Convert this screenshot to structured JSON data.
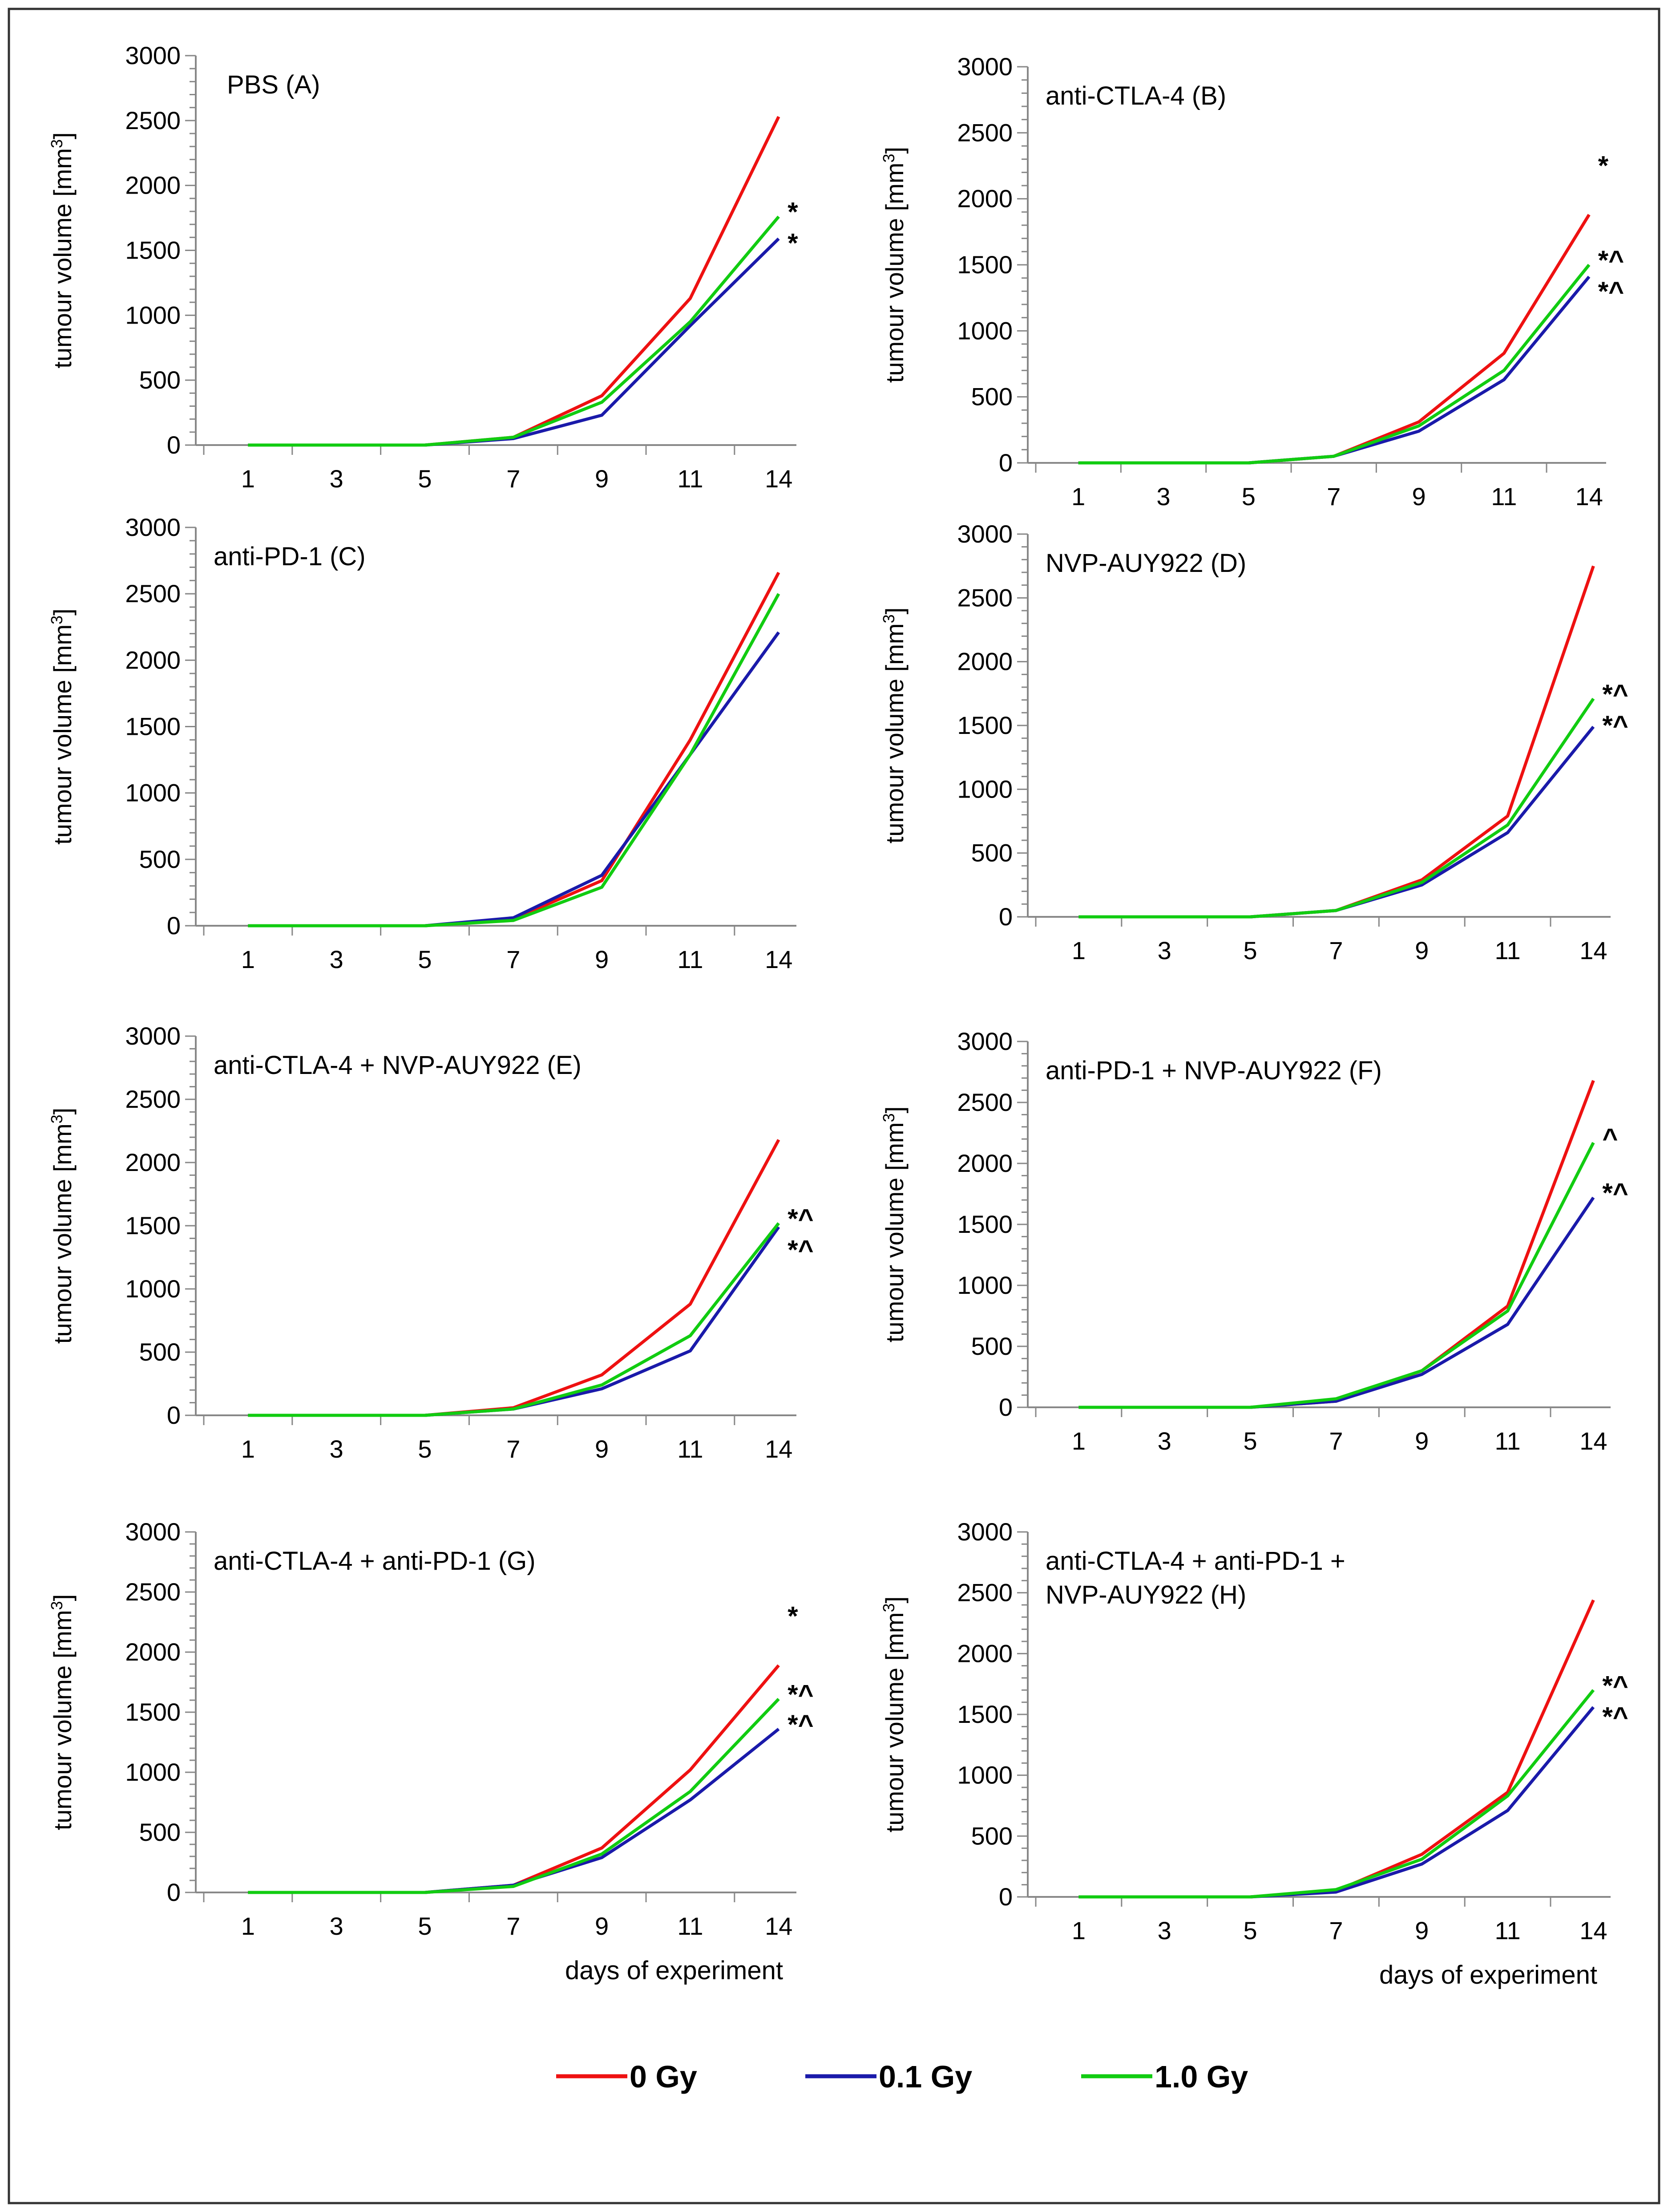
{
  "chart_data": [
    {
      "type": "line",
      "panel": "A",
      "title": "PBS (A)",
      "categories": [
        "1",
        "3",
        "5",
        "7",
        "9",
        "11",
        "14"
      ],
      "xlabel": "",
      "ylabel": "tumour volume [mm3]",
      "ylim": [
        0,
        3000
      ],
      "yticks": [
        "0",
        "500",
        "1000",
        "1500",
        "2000",
        "2500",
        "3000"
      ],
      "series": [
        {
          "name": "0 Gy",
          "values": [
            0,
            0,
            0,
            60,
            380,
            1130,
            2530
          ]
        },
        {
          "name": "0.1 Gy",
          "values": [
            0,
            0,
            0,
            50,
            230,
            920,
            1590
          ]
        },
        {
          "name": "1.0 Gy",
          "values": [
            0,
            0,
            0,
            60,
            330,
            950,
            1760
          ]
        }
      ],
      "annotations": [
        {
          "text": "*",
          "series": "1.0 Gy"
        },
        {
          "text": "*",
          "series": "0.1 Gy"
        }
      ]
    },
    {
      "type": "line",
      "panel": "B",
      "title": "anti-CTLA-4  (B)",
      "categories": [
        "1",
        "3",
        "5",
        "7",
        "9",
        "11",
        "14"
      ],
      "xlabel": "",
      "ylabel": "tumour volume [mm3]",
      "ylim": [
        0,
        3000
      ],
      "yticks": [
        "0",
        "500",
        "1000",
        "1500",
        "2000",
        "2500",
        "3000"
      ],
      "series": [
        {
          "name": "0 Gy",
          "values": [
            0,
            0,
            0,
            50,
            310,
            830,
            1880
          ]
        },
        {
          "name": "0.1 Gy",
          "values": [
            0,
            0,
            0,
            50,
            240,
            630,
            1410
          ]
        },
        {
          "name": "1.0 Gy",
          "values": [
            0,
            0,
            0,
            50,
            280,
            700,
            1500
          ]
        }
      ],
      "annotations": [
        {
          "text": "*",
          "series": "0 Gy"
        },
        {
          "text": "*^",
          "series": "1.0 Gy"
        },
        {
          "text": "*^",
          "series": "0.1 Gy"
        }
      ]
    },
    {
      "type": "line",
      "panel": "C",
      "title": "anti-PD-1  (C)",
      "categories": [
        "1",
        "3",
        "5",
        "7",
        "9",
        "11",
        "14"
      ],
      "xlabel": "",
      "ylabel": "tumour volume [mm3]",
      "ylim": [
        0,
        3000
      ],
      "yticks": [
        "0",
        "500",
        "1000",
        "1500",
        "2000",
        "2500",
        "3000"
      ],
      "series": [
        {
          "name": "0 Gy",
          "values": [
            0,
            0,
            0,
            50,
            340,
            1400,
            2660
          ]
        },
        {
          "name": "0.1 Gy",
          "values": [
            0,
            0,
            0,
            60,
            380,
            1290,
            2210
          ]
        },
        {
          "name": "1.0 Gy",
          "values": [
            0,
            0,
            0,
            40,
            290,
            1290,
            2500
          ]
        }
      ],
      "annotations": []
    },
    {
      "type": "line",
      "panel": "D",
      "title": "NVP-AUY922  (D)",
      "categories": [
        "1",
        "3",
        "5",
        "7",
        "9",
        "11",
        "14"
      ],
      "xlabel": "",
      "ylabel": "tumour volume [mm3]",
      "ylim": [
        0,
        3000
      ],
      "yticks": [
        "0",
        "500",
        "1000",
        "1500",
        "2000",
        "2500",
        "3000"
      ],
      "series": [
        {
          "name": "0 Gy",
          "values": [
            0,
            0,
            0,
            50,
            290,
            790,
            2750
          ]
        },
        {
          "name": "0.1 Gy",
          "values": [
            0,
            0,
            0,
            50,
            250,
            660,
            1490
          ]
        },
        {
          "name": "1.0 Gy",
          "values": [
            0,
            0,
            0,
            50,
            270,
            720,
            1710
          ]
        }
      ],
      "annotations": [
        {
          "text": "*^",
          "series": "1.0 Gy"
        },
        {
          "text": "*^",
          "series": "0.1 Gy"
        }
      ]
    },
    {
      "type": "line",
      "panel": "E",
      "title": "anti-CTLA-4  + NVP-AUY922  (E)",
      "categories": [
        "1",
        "3",
        "5",
        "7",
        "9",
        "11",
        "14"
      ],
      "xlabel": "",
      "ylabel": "tumour volume [mm3]",
      "ylim": [
        0,
        3000
      ],
      "yticks": [
        "0",
        "500",
        "1000",
        "1500",
        "2000",
        "2500",
        "3000"
      ],
      "series": [
        {
          "name": "0 Gy",
          "values": [
            0,
            0,
            0,
            60,
            320,
            880,
            2180
          ]
        },
        {
          "name": "0.1 Gy",
          "values": [
            0,
            0,
            0,
            50,
            210,
            510,
            1490
          ]
        },
        {
          "name": "1.0 Gy",
          "values": [
            0,
            0,
            0,
            50,
            240,
            630,
            1520
          ]
        }
      ],
      "annotations": [
        {
          "text": "*^",
          "series": "1.0 Gy"
        },
        {
          "text": "*^",
          "series": "0.1 Gy"
        }
      ]
    },
    {
      "type": "line",
      "panel": "F",
      "title": "anti-PD-1  + NVP-AUY922  (F)",
      "categories": [
        "1",
        "3",
        "5",
        "7",
        "9",
        "11",
        "14"
      ],
      "xlabel": "",
      "ylabel": "tumour volume [mm3]",
      "ylim": [
        0,
        3000
      ],
      "yticks": [
        "0",
        "500",
        "1000",
        "1500",
        "2000",
        "2500",
        "3000"
      ],
      "series": [
        {
          "name": "0 Gy",
          "values": [
            0,
            0,
            0,
            50,
            300,
            830,
            2680
          ]
        },
        {
          "name": "0.1 Gy",
          "values": [
            0,
            0,
            0,
            50,
            270,
            680,
            1720
          ]
        },
        {
          "name": "1.0 Gy",
          "values": [
            0,
            0,
            0,
            70,
            300,
            790,
            2170
          ]
        }
      ],
      "annotations": [
        {
          "text": "^",
          "series": "1.0 Gy"
        },
        {
          "text": "*^",
          "series": "0.1 Gy"
        }
      ]
    },
    {
      "type": "line",
      "panel": "G",
      "title": "anti-CTLA-4  + anti-PD-1 (G)",
      "categories": [
        "1",
        "3",
        "5",
        "7",
        "9",
        "11",
        "14"
      ],
      "xlabel": "days of experiment",
      "ylabel": "tumour volume [mm3]",
      "ylim": [
        0,
        3000
      ],
      "yticks": [
        "0",
        "500",
        "1000",
        "1500",
        "2000",
        "2500",
        "3000"
      ],
      "series": [
        {
          "name": "0 Gy",
          "values": [
            0,
            0,
            0,
            60,
            370,
            1020,
            1890
          ]
        },
        {
          "name": "0.1 Gy",
          "values": [
            0,
            0,
            0,
            60,
            290,
            770,
            1360
          ]
        },
        {
          "name": "1.0 Gy",
          "values": [
            0,
            0,
            0,
            50,
            320,
            840,
            1610
          ]
        }
      ],
      "annotations": [
        {
          "text": "*",
          "series": "0 Gy"
        },
        {
          "text": "*^",
          "series": "1.0 Gy"
        },
        {
          "text": "*^",
          "series": "0.1 Gy"
        }
      ]
    },
    {
      "type": "line",
      "panel": "H",
      "title": "anti-CTLA-4  + anti-PD-1 + NVP-AUY922  (H)",
      "title_lines": [
        "anti-CTLA-4  + anti-PD-1 +",
        "NVP-AUY922  (H)"
      ],
      "categories": [
        "1",
        "3",
        "5",
        "7",
        "9",
        "11",
        "14"
      ],
      "xlabel": "days of experiment",
      "ylabel": "tumour volume [mm3]",
      "ylim": [
        0,
        3000
      ],
      "yticks": [
        "0",
        "500",
        "1000",
        "1500",
        "2000",
        "2500",
        "3000"
      ],
      "series": [
        {
          "name": "0 Gy",
          "values": [
            0,
            0,
            0,
            50,
            350,
            860,
            2440
          ]
        },
        {
          "name": "0.1 Gy",
          "values": [
            0,
            0,
            0,
            40,
            270,
            710,
            1560
          ]
        },
        {
          "name": "1.0 Gy",
          "values": [
            0,
            0,
            0,
            60,
            310,
            830,
            1700
          ]
        }
      ],
      "annotations": [
        {
          "text": "*^",
          "series": "1.0 Gy"
        },
        {
          "text": "*^",
          "series": "0.1 Gy"
        }
      ]
    }
  ],
  "legend": {
    "items": [
      {
        "label": "0 Gy",
        "color": "#ee1111"
      },
      {
        "label": "0.1 Gy",
        "color": "#1a1aaa"
      },
      {
        "label": "1.0 Gy",
        "color": "#11cc11"
      }
    ]
  },
  "colors": {
    "0 Gy": "#ee1111",
    "0.1 Gy": "#1a1aaa",
    "1.0 Gy": "#11cc11",
    "frame": "#333333",
    "axis": "#888888"
  }
}
